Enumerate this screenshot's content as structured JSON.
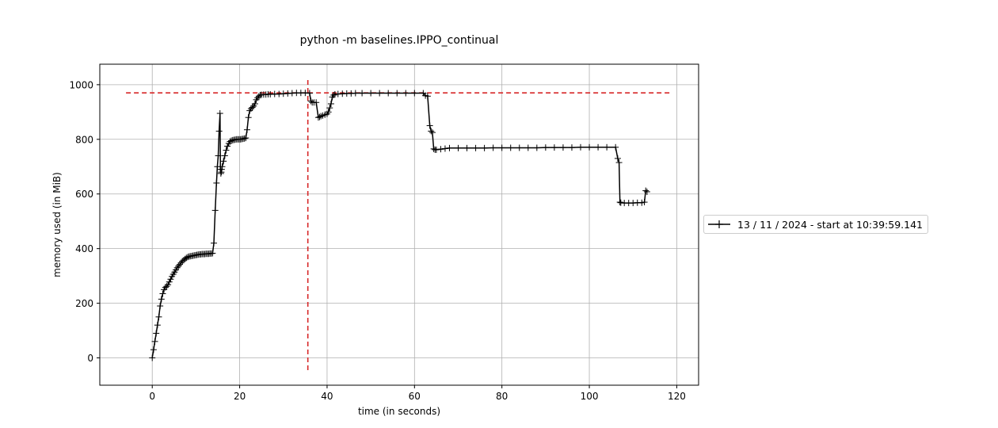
{
  "chart_data": {
    "type": "line",
    "title": "python -m baselines.IPPO_continual",
    "xlabel": "time (in seconds)",
    "ylabel": "memory used (in MiB)",
    "xlim": [
      -12,
      125
    ],
    "ylim": [
      -100,
      1075
    ],
    "xticks": [
      0,
      20,
      40,
      60,
      80,
      100,
      120
    ],
    "yticks": [
      0,
      200,
      400,
      600,
      800,
      1000
    ],
    "grid": true,
    "legend_position": "right-outside",
    "line_color": "#000000",
    "marker": "+",
    "series": [
      {
        "name": "13 / 11 / 2024 - start at 10:39:59.141",
        "x": [
          0,
          0.3,
          0.6,
          0.9,
          1.2,
          1.5,
          1.8,
          2.1,
          2.4,
          2.7,
          3.0,
          3.3,
          3.6,
          3.9,
          4.2,
          4.5,
          4.8,
          5.1,
          5.4,
          5.7,
          6.0,
          6.3,
          6.6,
          6.9,
          7.2,
          7.5,
          7.8,
          8.1,
          8.4,
          8.7,
          9.0,
          9.3,
          9.6,
          9.9,
          10.2,
          10.5,
          10.8,
          11.1,
          11.4,
          11.7,
          12.0,
          12.3,
          12.6,
          12.9,
          13.2,
          13.5,
          13.8,
          14.1,
          14.4,
          14.7,
          14.9,
          15.1,
          15.3,
          15.5,
          15.6,
          15.7,
          15.8,
          15.9,
          16.0,
          16.3,
          16.6,
          16.9,
          17.2,
          17.5,
          17.8,
          18.1,
          18.4,
          18.7,
          19.0,
          19.3,
          19.6,
          19.9,
          20.2,
          20.5,
          20.8,
          21.1,
          21.4,
          21.7,
          22.0,
          22.3,
          22.6,
          22.9,
          23.2,
          23.5,
          23.8,
          24.1,
          24.4,
          24.7,
          25.0,
          25.5,
          26.0,
          26.5,
          27.0,
          28.0,
          29.0,
          30.0,
          31.0,
          32.0,
          33.0,
          34.0,
          35.0,
          36.0,
          36.3,
          36.6,
          37.0,
          37.5,
          38.0,
          38.3,
          38.6,
          39.0,
          39.5,
          40.0,
          40.3,
          40.6,
          40.9,
          41.2,
          41.5,
          41.8,
          42.5,
          43.5,
          44.5,
          45.5,
          46.5,
          48.0,
          50.0,
          52.0,
          54.0,
          56.0,
          58.0,
          60.0,
          62.0,
          62.5,
          63.0,
          63.5,
          63.8,
          64.1,
          64.4,
          64.7,
          65.0,
          66.0,
          67.0,
          68.0,
          70.0,
          72.0,
          74.0,
          76.0,
          78.0,
          80.0,
          82.0,
          84.0,
          86.0,
          88.0,
          90.0,
          92.0,
          94.0,
          96.0,
          98.0,
          100.0,
          102.0,
          104.0,
          106.0,
          106.5,
          106.8,
          107.0,
          107.2,
          108.0,
          109.0,
          110.0,
          111.0,
          112.0,
          112.6,
          112.9,
          113.2
        ],
        "y": [
          0,
          30,
          60,
          90,
          120,
          150,
          190,
          215,
          235,
          250,
          258,
          262,
          268,
          278,
          288,
          298,
          306,
          314,
          322,
          330,
          336,
          342,
          348,
          354,
          358,
          362,
          366,
          369,
          371,
          372,
          373,
          374,
          375,
          376,
          377,
          378,
          379,
          379,
          380,
          380,
          380,
          381,
          381,
          381,
          382,
          382,
          383,
          420,
          540,
          640,
          700,
          740,
          830,
          895,
          690,
          675,
          680,
          690,
          700,
          720,
          740,
          760,
          775,
          785,
          792,
          795,
          797,
          798,
          799,
          800,
          800,
          800,
          800,
          801,
          802,
          803,
          805,
          835,
          880,
          905,
          912,
          917,
          922,
          930,
          945,
          952,
          958,
          962,
          963,
          964,
          964,
          965,
          965,
          966,
          966,
          967,
          968,
          969,
          970,
          970,
          970,
          969,
          940,
          935,
          935,
          935,
          880,
          882,
          885,
          887,
          890,
          893,
          900,
          915,
          930,
          955,
          962,
          965,
          966,
          967,
          968,
          968,
          969,
          969,
          969,
          969,
          969,
          969,
          969,
          969,
          969,
          960,
          958,
          850,
          830,
          825,
          765,
          762,
          762,
          764,
          766,
          768,
          768,
          768,
          768,
          768,
          769,
          769,
          769,
          769,
          769,
          769,
          770,
          770,
          770,
          770,
          771,
          771,
          771,
          771,
          771,
          730,
          715,
          570,
          568,
          567,
          567,
          567,
          568,
          568,
          570,
          612,
          608
        ]
      }
    ],
    "reference_lines": [
      {
        "orientation": "horizontal",
        "value": 970,
        "from": -6,
        "to": 119,
        "color": "#d62728",
        "style": "dashed"
      },
      {
        "orientation": "vertical",
        "value": 35.6,
        "from": -45,
        "to": 1020,
        "color": "#d62728",
        "style": "dashed"
      }
    ]
  }
}
